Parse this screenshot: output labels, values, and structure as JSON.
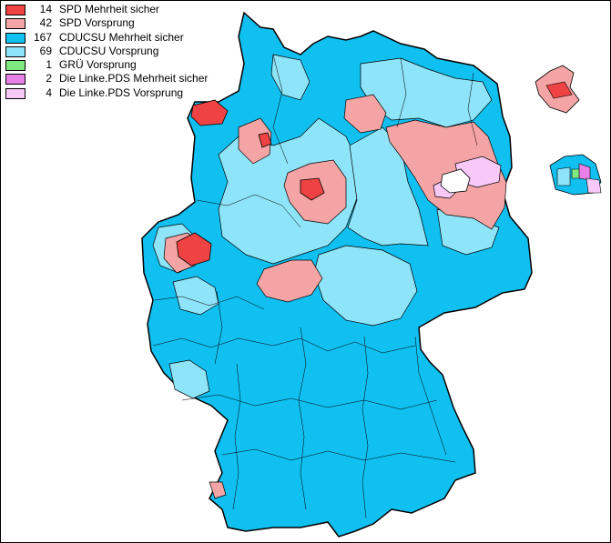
{
  "legend": [
    {
      "count": "14",
      "label": "SPD Mehrheit sicher",
      "color": "#ef4343"
    },
    {
      "count": "42",
      "label": "SPD Vorsprung",
      "color": "#f4a4a4"
    },
    {
      "count": "167",
      "label": "CDUCSU Mehrheit sicher",
      "color": "#0fc0f0"
    },
    {
      "count": "69",
      "label": "CDUCSU Vorsprung",
      "color": "#8ee4f8"
    },
    {
      "count": "1",
      "label": "GRÜ Vorsprung",
      "color": "#80e880"
    },
    {
      "count": "2",
      "label": "Die Linke.PDS Mehrheit sicher",
      "color": "#e880e8"
    },
    {
      "count": "4",
      "label": "Die Linke.PDS Vorsprung",
      "color": "#f8c8f8"
    }
  ]
}
